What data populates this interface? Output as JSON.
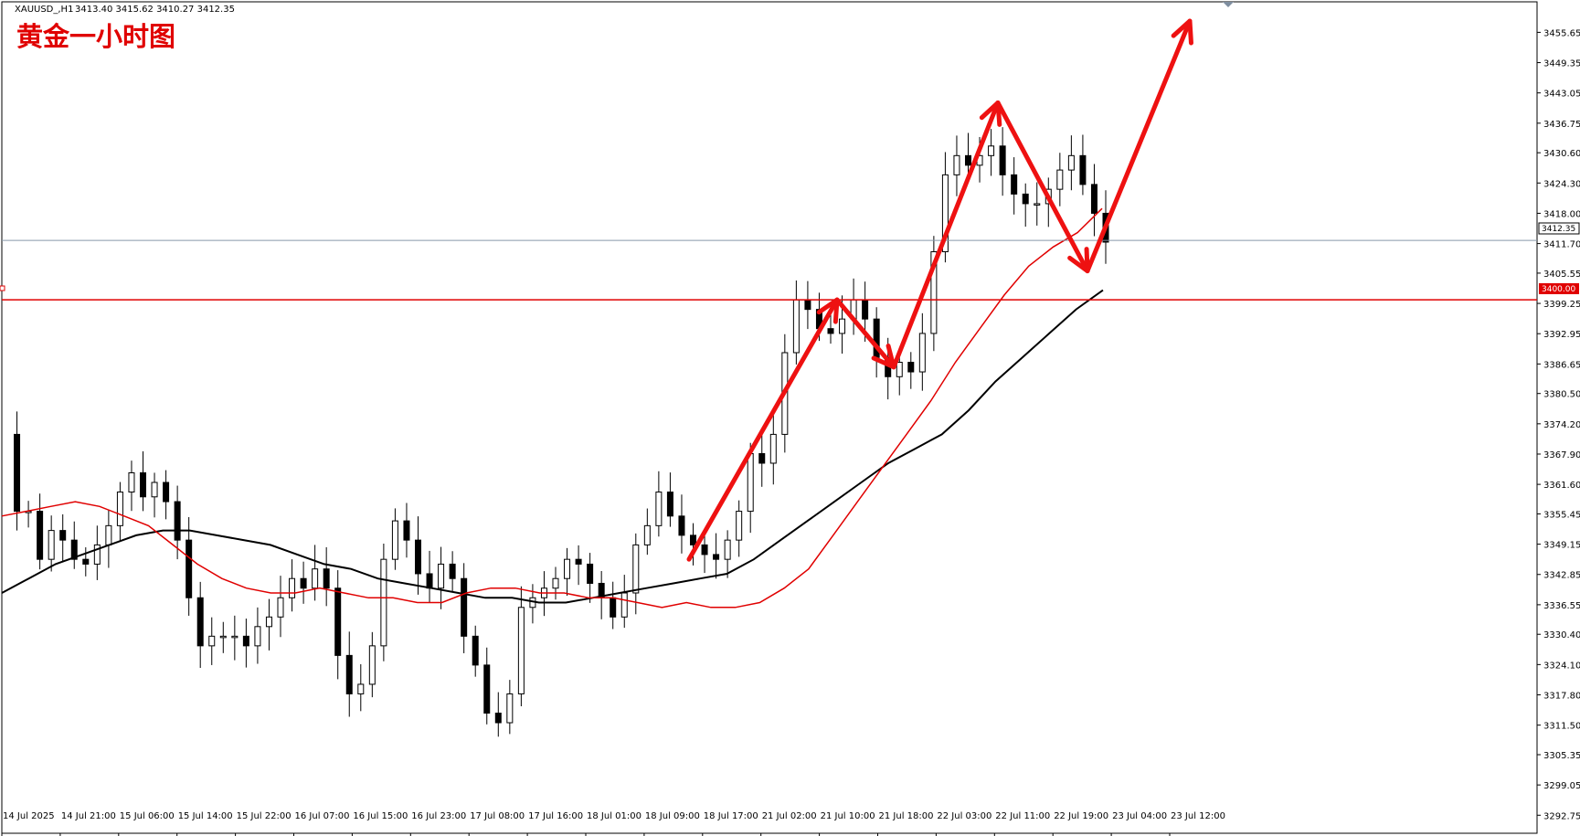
{
  "header": {
    "symbol": "XAUUSD_,H1",
    "ohlc": "3413.40 3415.62 3410.27 3412.35"
  },
  "title": "黄金一小时图",
  "chart_data": {
    "type": "candlestick",
    "price_axis": {
      "ylim": [
        3289.0,
        3462.0
      ],
      "ticks": [
        "3455.65",
        "3449.35",
        "3443.05",
        "3436.75",
        "3430.60",
        "3424.30",
        "3418.00",
        "3411.70",
        "3405.55",
        "3399.25",
        "3392.95",
        "3386.65",
        "3380.50",
        "3374.20",
        "3367.90",
        "3361.60",
        "3355.45",
        "3349.15",
        "3342.85",
        "3336.55",
        "3330.40",
        "3324.10",
        "3317.80",
        "3311.50",
        "3305.35",
        "3299.05",
        "3292.75"
      ]
    },
    "time_axis": {
      "labels": [
        "14 Jul 2025",
        "14 Jul 21:00",
        "15 Jul 06:00",
        "15 Jul 14:00",
        "15 Jul 22:00",
        "16 Jul 07:00",
        "16 Jul 15:00",
        "16 Jul 23:00",
        "17 Jul 08:00",
        "17 Jul 16:00",
        "18 Jul 01:00",
        "18 Jul 09:00",
        "18 Jul 17:00",
        "21 Jul 02:00",
        "21 Jul 10:00",
        "21 Jul 18:00",
        "22 Jul 03:00",
        "22 Jul 11:00",
        "22 Jul 19:00",
        "23 Jul 04:00",
        "23 Jul 12:00"
      ]
    },
    "current_price": "3412.35",
    "level_line": "3400.00",
    "close_path": [
      3372,
      3356,
      3356,
      3346,
      3352,
      3350,
      3346,
      3345,
      3349,
      3353,
      3360,
      3364,
      3359,
      3362,
      3358,
      3350,
      3338,
      3328,
      3330,
      3330,
      3330,
      3328,
      3332,
      3334,
      3338,
      3342,
      3340,
      3344,
      3340,
      3326,
      3318,
      3320,
      3328,
      3346,
      3354,
      3350,
      3343,
      3340,
      3345,
      3342,
      3330,
      3324,
      3314,
      3312,
      3318,
      3336,
      3338,
      3340,
      3342,
      3346,
      3345,
      3341,
      3338,
      3334,
      3339,
      3349,
      3353,
      3360,
      3355,
      3351,
      3349,
      3347,
      3346,
      3350,
      3356,
      3368,
      3366,
      3372,
      3389,
      3400,
      3398,
      3394,
      3393,
      3396,
      3400,
      3396,
      3388,
      3384,
      3387,
      3385,
      3393,
      3410,
      3426,
      3430,
      3428,
      3430,
      3432,
      3426,
      3422,
      3420,
      3420,
      3423,
      3427,
      3430,
      3424,
      3418,
      3412
    ],
    "sma_red": [
      3355,
      3356,
      3357,
      3358,
      3357,
      3355,
      3353,
      3349,
      3345,
      3342,
      3340,
      3339,
      3339,
      3340,
      3339,
      3338,
      3338,
      3337,
      3337,
      3339,
      3340,
      3340,
      3339,
      3339,
      3338,
      3338,
      3337,
      3336,
      3337,
      3336,
      3336,
      3337,
      3340,
      3344,
      3351,
      3358,
      3365,
      3372,
      3379,
      3387,
      3394,
      3401,
      3407,
      3411,
      3414,
      3419
    ],
    "sma_black": [
      3339,
      3342,
      3345,
      3347,
      3349,
      3351,
      3352,
      3352,
      3351,
      3350,
      3349,
      3347,
      3345,
      3344,
      3342,
      3341,
      3340,
      3339,
      3338,
      3338,
      3337,
      3337,
      3338,
      3339,
      3340,
      3341,
      3342,
      3343,
      3346,
      3350,
      3354,
      3358,
      3362,
      3366,
      3369,
      3372,
      3377,
      3383,
      3388,
      3393,
      3398,
      3402
    ],
    "arrows": [
      {
        "from": [
          754,
          3346
        ],
        "to": [
          916,
          3400
        ]
      },
      {
        "from": [
          916,
          3400
        ],
        "to": [
          978,
          3386
        ]
      },
      {
        "from": [
          978,
          3386
        ],
        "to": [
          1092,
          3441
        ]
      },
      {
        "from": [
          1092,
          3441
        ],
        "to": [
          1190,
          3406
        ]
      },
      {
        "from": [
          1190,
          3406
        ],
        "to": [
          1302,
          3458
        ]
      }
    ]
  }
}
